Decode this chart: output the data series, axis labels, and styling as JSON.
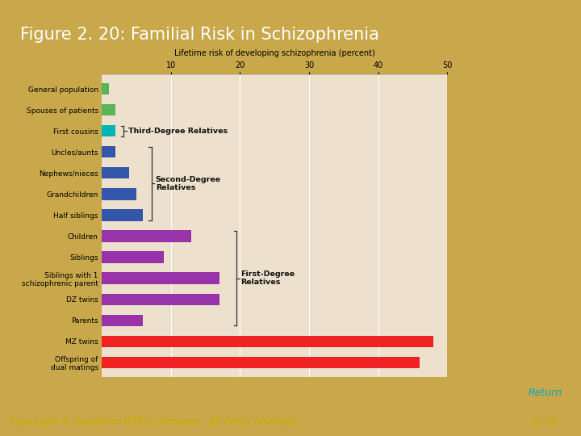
{
  "title": "Figure 2. 20: Familial Risk in Schizophrenia",
  "chart_title": "Lifetime risk of developing schizophrenia (percent)",
  "copyright": "Copyright © Houghton Mifflin Company.  All rights reserved.",
  "page_num": "11-58",
  "return_text": "Return",
  "categories": [
    "General population",
    "Spouses of patients",
    "First cousins",
    "Uncles/aunts",
    "Nephews/nieces",
    "Grandchildren",
    "Half siblings",
    "Children",
    "Siblings",
    "Siblings with 1\nschizophrenic parent",
    "DZ twins",
    "Parents",
    "MZ twins",
    "Offspring of\ndual matings"
  ],
  "values": [
    1,
    2,
    2,
    2,
    4,
    5,
    6,
    13,
    9,
    17,
    17,
    6,
    48,
    46
  ],
  "colors": [
    "#5ab55a",
    "#5ab55a",
    "#00b5b5",
    "#3355aa",
    "#3355aa",
    "#3355aa",
    "#3355aa",
    "#9933aa",
    "#9933aa",
    "#9933aa",
    "#9933aa",
    "#9933aa",
    "#ee2222",
    "#ee2222"
  ],
  "xlim": [
    0,
    50
  ],
  "xticks": [
    10,
    20,
    30,
    40,
    50
  ],
  "chart_bg": "#ede0cc",
  "slide_bg": "#c8a84a",
  "title_bg": "#555555",
  "title_color": "#ffffff",
  "bottom_bg": "#111111",
  "bottom_text_color": "#ccaa00",
  "return_color": "#00aacc",
  "border_color": "#ffffff",
  "annot_third": {
    "label": "Third-Degree Relatives",
    "rows": [
      2
    ],
    "x": 3.0
  },
  "annot_second": {
    "label": "Second-Degree\nRelatives",
    "rows": [
      3,
      4,
      5,
      6
    ],
    "x": 6.5
  },
  "annot_first": {
    "label": "First-Degree\nRelatives",
    "rows": [
      7,
      8,
      9,
      10,
      11
    ],
    "x": 19.0
  }
}
